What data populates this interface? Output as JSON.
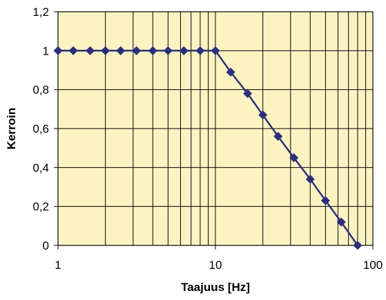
{
  "chart_data": {
    "type": "line",
    "title": "",
    "xlabel": "Taajuus [Hz]",
    "ylabel": "Kerroin",
    "xscale": "log",
    "xlim": [
      1,
      100
    ],
    "ylim": [
      0,
      1.2
    ],
    "xticks": [
      1,
      10,
      100
    ],
    "xtick_labels": [
      "1",
      "10",
      "100"
    ],
    "yticks": [
      0,
      0.2,
      0.4,
      0.6,
      0.8,
      1,
      1.2
    ],
    "ytick_labels": [
      "0",
      "0,2",
      "0,4",
      "0,6",
      "0,8",
      "1",
      "1,2"
    ],
    "grid": true,
    "legend": "none",
    "colors": {
      "plot_bg": "#fbf3c2",
      "grid": "#000000",
      "series": "#2b2f7a"
    },
    "series": [
      {
        "x": [
          1,
          1.25,
          1.6,
          2,
          2.5,
          3.15,
          4,
          5,
          6.3,
          8,
          10,
          12.5,
          16,
          20,
          25,
          31.5,
          40,
          50,
          63,
          80
        ],
        "y": [
          1,
          1,
          1,
          1,
          1,
          1,
          1,
          1,
          1,
          1,
          1,
          0.89,
          0.78,
          0.67,
          0.56,
          0.45,
          0.34,
          0.23,
          0.12,
          0
        ]
      }
    ]
  }
}
